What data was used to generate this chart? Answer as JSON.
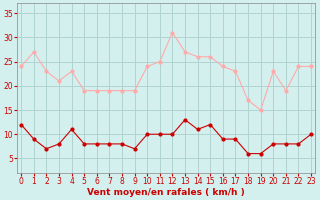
{
  "x": [
    0,
    1,
    2,
    3,
    4,
    5,
    6,
    7,
    8,
    9,
    10,
    11,
    12,
    13,
    14,
    15,
    16,
    17,
    18,
    19,
    20,
    21,
    22,
    23
  ],
  "wind_avg": [
    12,
    9,
    7,
    8,
    11,
    8,
    8,
    8,
    8,
    7,
    10,
    10,
    10,
    13,
    11,
    12,
    9,
    9,
    6,
    6,
    8,
    8,
    8,
    10
  ],
  "wind_gust": [
    24,
    27,
    23,
    21,
    23,
    19,
    19,
    19,
    19,
    19,
    24,
    25,
    31,
    27,
    26,
    26,
    24,
    23,
    17,
    15,
    23,
    19,
    24,
    24
  ],
  "bg_color": "#d4f0ee",
  "grid_color": "#b0d4d0",
  "avg_color": "#cc0000",
  "gust_color": "#ffaaaa",
  "xlabel": "Vent moyen/en rafales ( km/h )",
  "ylabel_ticks": [
    5,
    10,
    15,
    20,
    25,
    30,
    35
  ],
  "ylim": [
    2,
    37
  ],
  "xlim": [
    -0.3,
    23.3
  ]
}
